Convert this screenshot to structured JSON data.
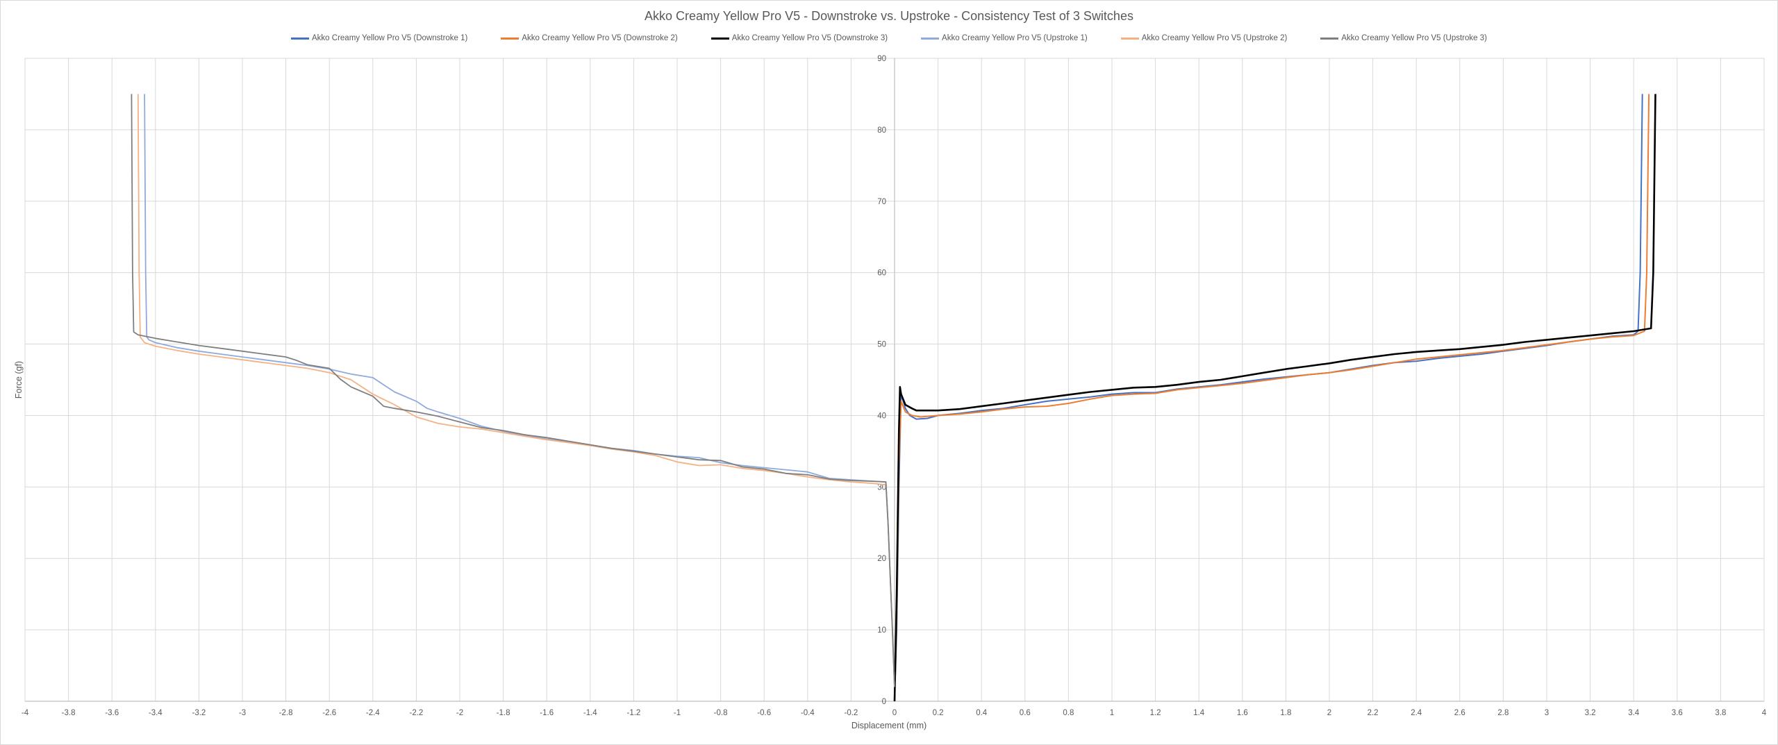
{
  "chart_data": {
    "type": "line",
    "title": "Akko Creamy Yellow Pro V5 - Downstroke vs. Upstroke - Consistency Test of 3 Switches",
    "xlabel": "Displacement (mm)",
    "ylabel": "Force (gf)",
    "xlim": [
      -4,
      4
    ],
    "ylim": [
      0,
      90
    ],
    "x_ticks": [
      "-4",
      "-3.8",
      "-3.6",
      "-3.4",
      "-3.2",
      "-3",
      "-2.8",
      "-2.6",
      "-2.4",
      "-2.2",
      "-2",
      "-1.8",
      "-1.6",
      "-1.4",
      "-1.2",
      "-1",
      "-0.8",
      "-0.6",
      "-0.4",
      "-0.2",
      "0",
      "0.2",
      "0.4",
      "0.6",
      "0.8",
      "1",
      "1.2",
      "1.4",
      "1.6",
      "1.8",
      "2",
      "2.2",
      "2.4",
      "2.6",
      "2.8",
      "3",
      "3.2",
      "3.4",
      "3.6",
      "3.8",
      "4"
    ],
    "y_ticks": [
      "0",
      "10",
      "20",
      "30",
      "40",
      "50",
      "60",
      "70",
      "80",
      "90"
    ],
    "grid": true,
    "legend_position": "top",
    "series": [
      {
        "name": "Akko Creamy Yellow Pro V5 (Downstroke 1)",
        "color": "#4472c4",
        "x": [
          0,
          0.01,
          0.02,
          0.03,
          0.05,
          0.07,
          0.1,
          0.15,
          0.2,
          0.3,
          0.4,
          0.5,
          0.6,
          0.7,
          0.8,
          0.9,
          1.0,
          1.1,
          1.2,
          1.3,
          1.4,
          1.5,
          1.6,
          1.7,
          1.8,
          1.9,
          2.0,
          2.1,
          2.2,
          2.3,
          2.4,
          2.5,
          2.6,
          2.7,
          2.8,
          2.9,
          3.0,
          3.1,
          3.2,
          3.3,
          3.4,
          3.42,
          3.43,
          3.44
        ],
        "y": [
          0,
          10,
          30,
          43,
          41,
          40,
          39.5,
          39.6,
          40,
          40.3,
          40.7,
          41,
          41.5,
          42,
          42.3,
          42.6,
          43,
          43.2,
          43.2,
          43.7,
          44,
          44.3,
          44.7,
          45.1,
          45.4,
          45.7,
          46,
          46.5,
          47,
          47.4,
          47.6,
          48,
          48.3,
          48.6,
          49,
          49.4,
          49.8,
          50.3,
          50.7,
          51.1,
          51.3,
          51.8,
          60,
          85
        ]
      },
      {
        "name": "Akko Creamy Yellow Pro V5 (Downstroke 2)",
        "color": "#ed7d31",
        "x": [
          0,
          0.01,
          0.02,
          0.03,
          0.05,
          0.08,
          0.12,
          0.2,
          0.3,
          0.4,
          0.5,
          0.6,
          0.7,
          0.8,
          0.9,
          1.0,
          1.1,
          1.2,
          1.3,
          1.4,
          1.5,
          1.6,
          1.7,
          1.8,
          1.9,
          2.0,
          2.1,
          2.2,
          2.3,
          2.4,
          2.5,
          2.6,
          2.7,
          2.8,
          2.9,
          3.0,
          3.1,
          3.2,
          3.3,
          3.4,
          3.45,
          3.46,
          3.47
        ],
        "y": [
          0,
          12,
          33,
          42,
          40.5,
          40,
          39.8,
          40,
          40.2,
          40.5,
          40.9,
          41.2,
          41.3,
          41.7,
          42.3,
          42.8,
          43,
          43.1,
          43.6,
          43.9,
          44.2,
          44.5,
          44.9,
          45.3,
          45.7,
          46,
          46.4,
          46.9,
          47.4,
          47.9,
          48.2,
          48.5,
          48.8,
          49.1,
          49.5,
          49.9,
          50.3,
          50.7,
          51,
          51.2,
          51.8,
          60,
          85
        ]
      },
      {
        "name": "Akko Creamy Yellow Pro V5 (Downstroke 3)",
        "color": "#000000",
        "x": [
          0,
          0.01,
          0.02,
          0.025,
          0.03,
          0.05,
          0.08,
          0.1,
          0.15,
          0.2,
          0.3,
          0.4,
          0.5,
          0.6,
          0.7,
          0.8,
          0.9,
          1.0,
          1.1,
          1.2,
          1.3,
          1.4,
          1.5,
          1.6,
          1.7,
          1.8,
          1.9,
          2.0,
          2.1,
          2.2,
          2.3,
          2.4,
          2.5,
          2.6,
          2.7,
          2.8,
          2.9,
          3.0,
          3.1,
          3.2,
          3.3,
          3.4,
          3.48,
          3.49,
          3.5
        ],
        "y": [
          0,
          15,
          38,
          44,
          43,
          41.5,
          41,
          40.7,
          40.7,
          40.7,
          40.9,
          41.3,
          41.7,
          42.1,
          42.5,
          42.9,
          43.3,
          43.6,
          43.9,
          44,
          44.3,
          44.7,
          45,
          45.5,
          46,
          46.5,
          46.9,
          47.3,
          47.8,
          48.2,
          48.6,
          48.9,
          49.1,
          49.3,
          49.6,
          49.9,
          50.3,
          50.6,
          50.9,
          51.2,
          51.5,
          51.8,
          52.2,
          60,
          85
        ]
      },
      {
        "name": "Akko Creamy Yellow Pro V5 (Upstroke 1)",
        "color": "#8faadc",
        "x": [
          -3.45,
          -3.445,
          -3.44,
          -3.43,
          -3.4,
          -3.3,
          -3.2,
          -3.1,
          -3.0,
          -2.9,
          -2.8,
          -2.7,
          -2.6,
          -2.5,
          -2.4,
          -2.35,
          -2.3,
          -2.2,
          -2.15,
          -2.1,
          -2.0,
          -1.9,
          -1.8,
          -1.7,
          -1.6,
          -1.5,
          -1.4,
          -1.3,
          -1.2,
          -1.1,
          -1.0,
          -0.9,
          -0.8,
          -0.7,
          -0.6,
          -0.5,
          -0.4,
          -0.3,
          -0.2,
          -0.1,
          -0.04,
          -0.03,
          -0.01,
          0
        ],
        "y": [
          85,
          60,
          51,
          50.6,
          50.2,
          49.5,
          49,
          48.6,
          48.2,
          47.8,
          47.4,
          47,
          46.5,
          45.8,
          45.3,
          44.3,
          43.3,
          42,
          41,
          40.5,
          39.6,
          38.5,
          37.8,
          37.2,
          36.7,
          36.3,
          35.8,
          35.4,
          35.1,
          34.6,
          34.3,
          34.1,
          33.4,
          33,
          32.7,
          32.4,
          32.1,
          31.2,
          31,
          30.8,
          30.7,
          25,
          10,
          2
        ]
      },
      {
        "name": "Akko Creamy Yellow Pro V5 (Upstroke 2)",
        "color": "#f4b183",
        "x": [
          -3.48,
          -3.475,
          -3.47,
          -3.45,
          -3.4,
          -3.3,
          -3.2,
          -3.1,
          -3.0,
          -2.9,
          -2.8,
          -2.7,
          -2.6,
          -2.5,
          -2.4,
          -2.3,
          -2.2,
          -2.1,
          -2.0,
          -1.9,
          -1.8,
          -1.7,
          -1.6,
          -1.5,
          -1.4,
          -1.3,
          -1.2,
          -1.1,
          -1.0,
          -0.9,
          -0.8,
          -0.7,
          -0.6,
          -0.5,
          -0.4,
          -0.3,
          -0.2,
          -0.1,
          -0.04,
          -0.03,
          -0.01,
          0
        ],
        "y": [
          85,
          60,
          51,
          50.2,
          49.7,
          49.1,
          48.6,
          48.2,
          47.8,
          47.4,
          47,
          46.6,
          46,
          45,
          43,
          41.5,
          39.8,
          38.9,
          38.4,
          38.1,
          37.6,
          37.1,
          36.6,
          36.2,
          35.8,
          35.3,
          34.9,
          34.4,
          33.5,
          33,
          33.1,
          32.6,
          32.3,
          31.9,
          31.4,
          31,
          30.7,
          30.5,
          30.3,
          25,
          10,
          2
        ]
      },
      {
        "name": "Akko Creamy Yellow Pro V5 (Upstroke 3)",
        "color": "#7f7f7f",
        "x": [
          -3.51,
          -3.505,
          -3.5,
          -3.48,
          -3.4,
          -3.3,
          -3.2,
          -3.1,
          -3.0,
          -2.9,
          -2.8,
          -2.75,
          -2.7,
          -2.6,
          -2.55,
          -2.5,
          -2.4,
          -2.35,
          -2.3,
          -2.2,
          -2.1,
          -2.0,
          -1.9,
          -1.8,
          -1.7,
          -1.6,
          -1.5,
          -1.4,
          -1.3,
          -1.2,
          -1.1,
          -1.0,
          -0.9,
          -0.8,
          -0.7,
          -0.6,
          -0.5,
          -0.4,
          -0.3,
          -0.2,
          -0.1,
          -0.04,
          -0.03,
          -0.01,
          0
        ],
        "y": [
          85,
          60,
          51.7,
          51.3,
          50.8,
          50.3,
          49.8,
          49.4,
          49,
          48.6,
          48.2,
          47.7,
          47.1,
          46.6,
          45.1,
          44,
          42.7,
          41.3,
          41,
          40.5,
          39.9,
          39.1,
          38.3,
          37.9,
          37.3,
          36.9,
          36.4,
          35.9,
          35.4,
          35,
          34.6,
          34.2,
          33.8,
          33.7,
          32.8,
          32.5,
          31.9,
          31.7,
          31.1,
          30.9,
          30.8,
          30.7,
          25,
          10,
          2
        ]
      }
    ]
  }
}
